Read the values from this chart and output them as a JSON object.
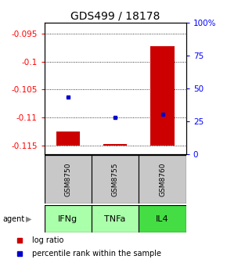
{
  "title": "GDS499 / 18178",
  "samples": [
    "GSM8750",
    "GSM8755",
    "GSM8760"
  ],
  "agents": [
    "IFNg",
    "TNFa",
    "IL4"
  ],
  "log_ratios": [
    -0.1125,
    -0.1148,
    -0.0972
  ],
  "percentile_ranks": [
    43,
    28,
    30
  ],
  "ylim_left": [
    -0.1165,
    -0.093
  ],
  "ylim_right": [
    0,
    100
  ],
  "yticks_left": [
    -0.115,
    -0.11,
    -0.105,
    -0.1,
    -0.095
  ],
  "yticks_left_labels": [
    "-0.115",
    "-0.11",
    "-0.105",
    "-0.1",
    "-0.095"
  ],
  "yticks_right": [
    0,
    25,
    50,
    75,
    100
  ],
  "yticks_right_labels": [
    "0",
    "25",
    "50",
    "75",
    "100%"
  ],
  "bar_color": "#cc0000",
  "dot_color": "#0000cc",
  "agent_colors": [
    "#aaffaa",
    "#aaffaa",
    "#44dd44"
  ],
  "sample_box_color": "#c8c8c8",
  "baseline": -0.115,
  "bar_width": 0.5,
  "title_fontsize": 10,
  "tick_fontsize": 7.5,
  "legend_fontsize": 7
}
